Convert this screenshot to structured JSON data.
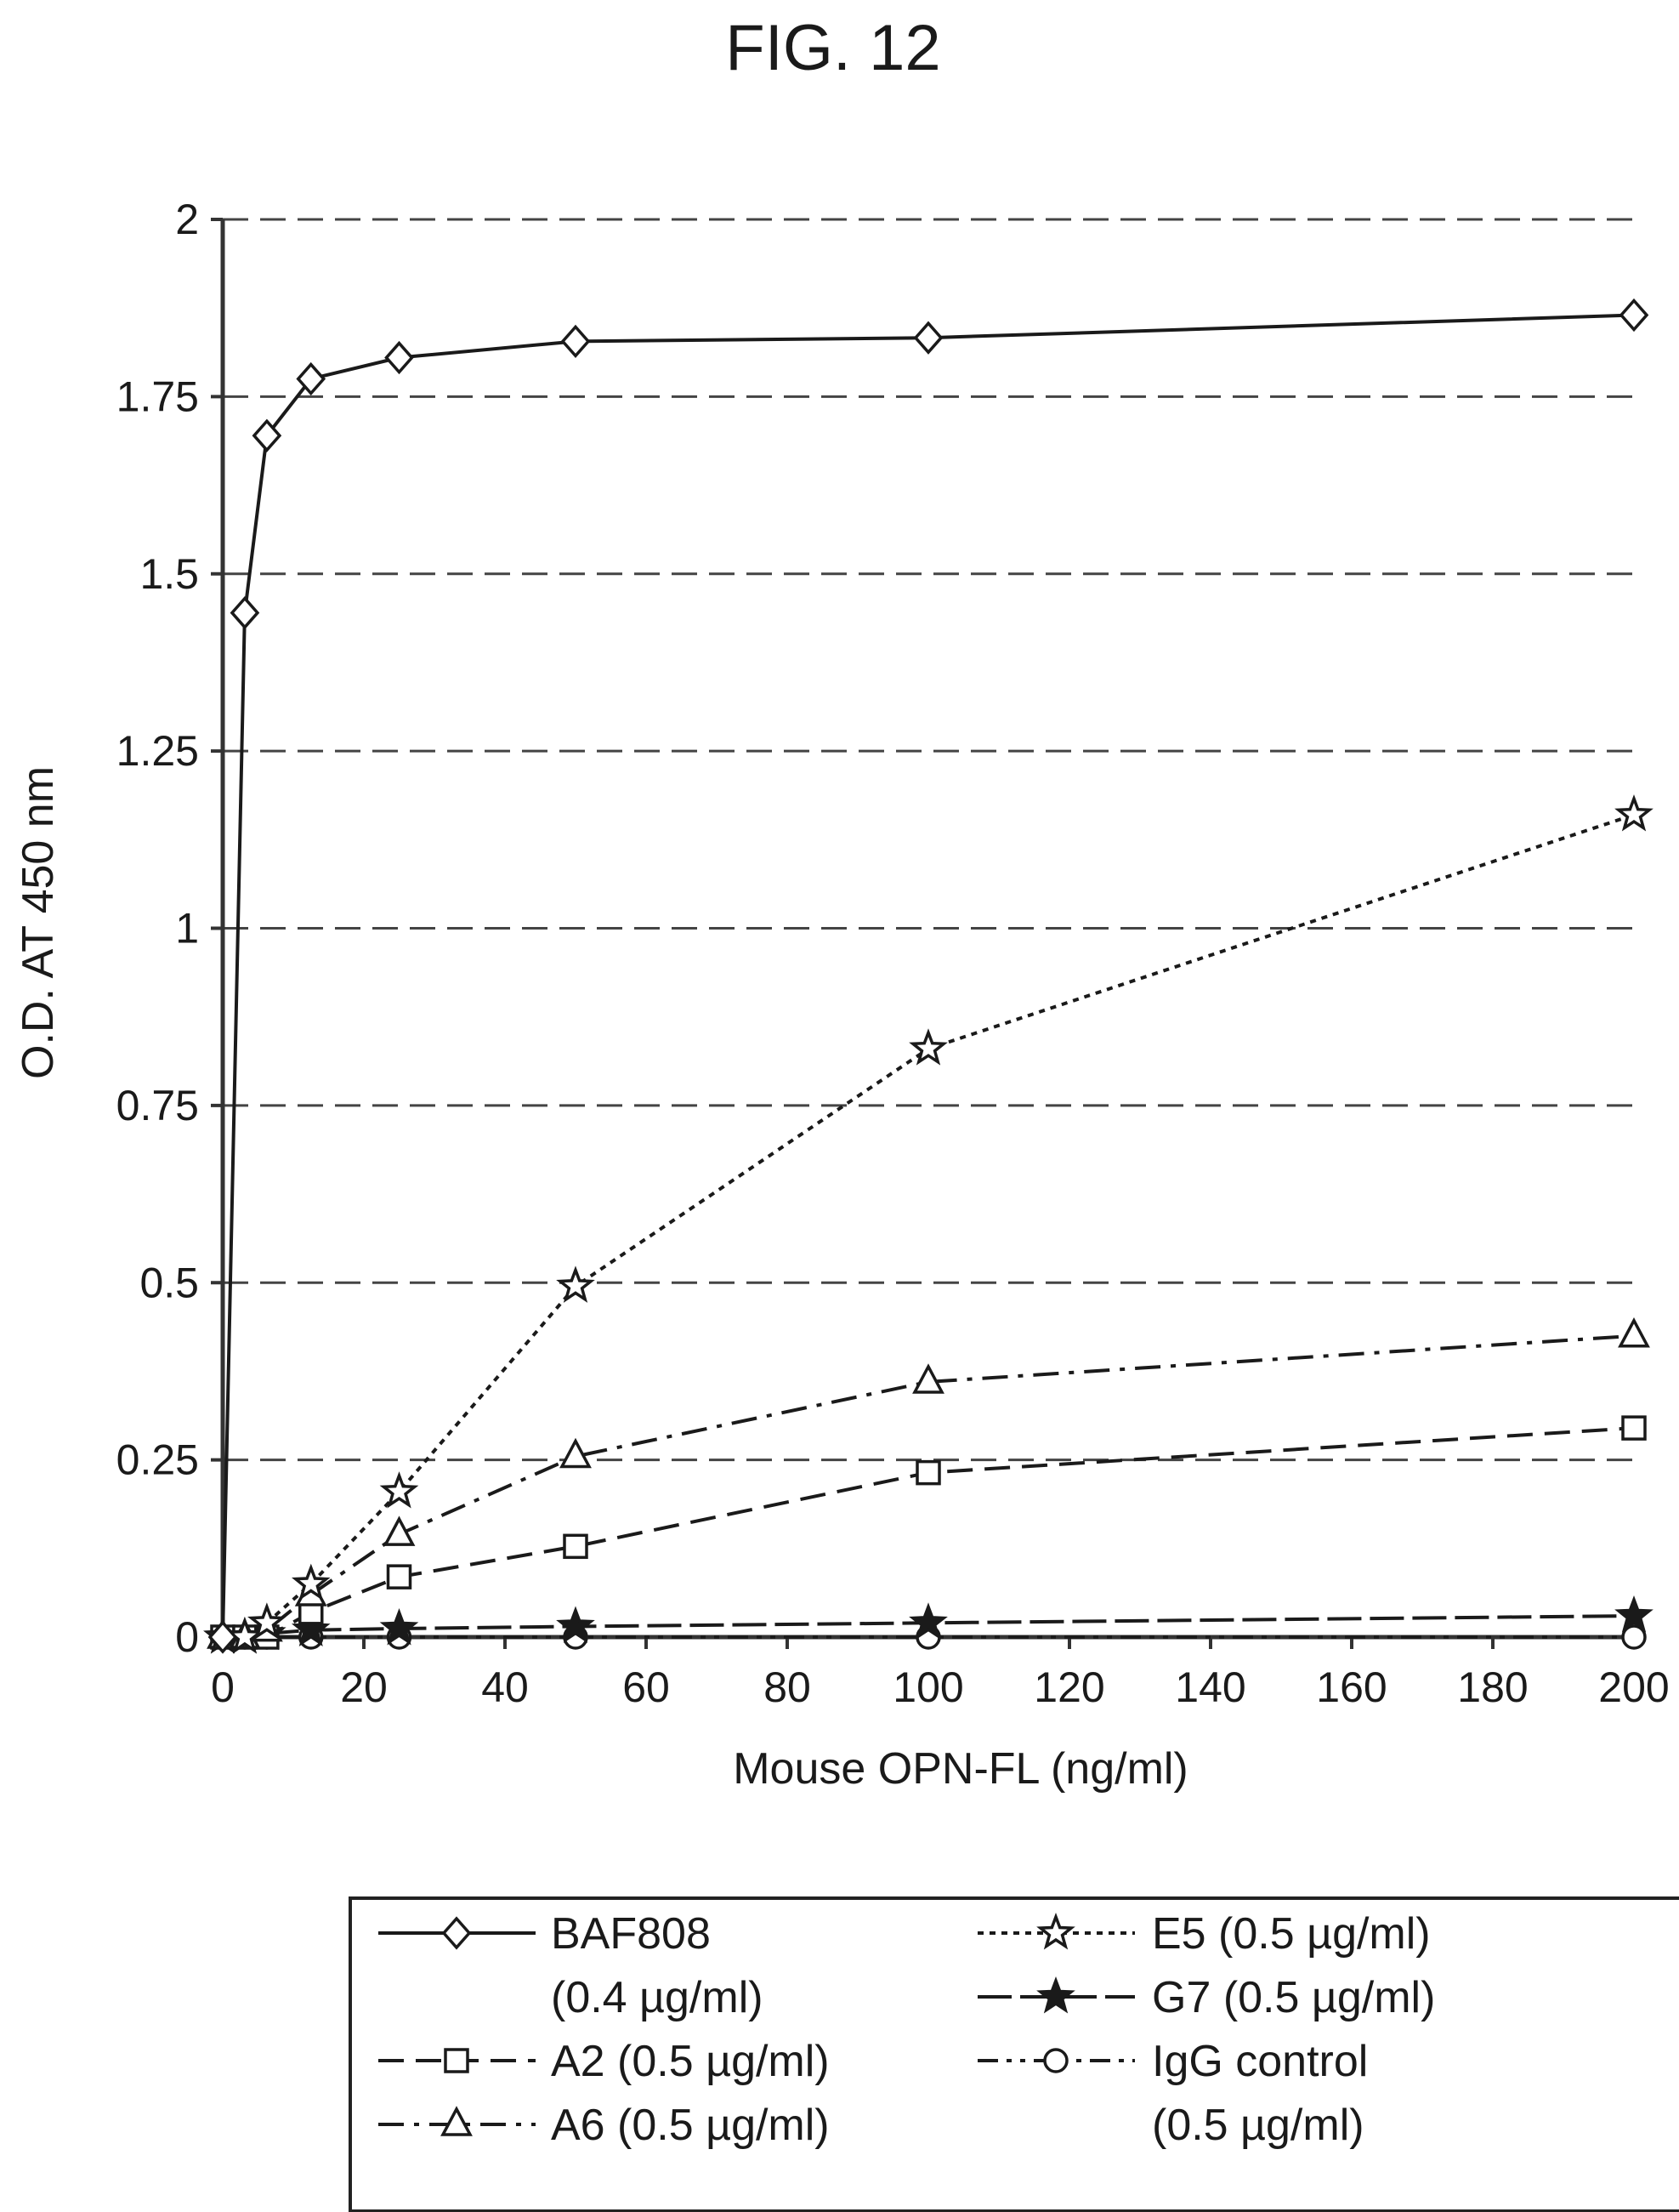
{
  "figure": {
    "title": "FIG. 12"
  },
  "chart_data": {
    "type": "line",
    "xlabel": "Mouse OPN-FL (ng/ml)",
    "ylabel": "O.D. AT 450 nm",
    "xlim": [
      0,
      200
    ],
    "ylim": [
      0,
      2
    ],
    "xticks": [
      "0",
      "20",
      "40",
      "60",
      "80",
      "100",
      "120",
      "140",
      "160",
      "180",
      "200"
    ],
    "yticks": [
      "0",
      "0.25",
      "0.5",
      "0.75",
      "1",
      "1.25",
      "1.5",
      "1.75",
      "2"
    ],
    "grid": "horizontal-dashed",
    "legend_position": "bottom",
    "series": [
      {
        "name": "BAF808",
        "name2": "(0.4 µg/ml)",
        "marker": "diamond",
        "dash": "solid",
        "x": [
          0,
          3.125,
          6.25,
          12.5,
          25,
          50,
          100,
          200
        ],
        "y": [
          0,
          1.445,
          1.695,
          1.775,
          1.805,
          1.828,
          1.833,
          1.865
        ]
      },
      {
        "name": "A2 (0.5 µg/ml)",
        "marker": "square",
        "dash": "dashed",
        "x": [
          0,
          3.125,
          6.25,
          12.5,
          25,
          50,
          100,
          200
        ],
        "y": [
          0,
          0,
          0,
          0.035,
          0.085,
          0.128,
          0.232,
          0.295
        ]
      },
      {
        "name": "A6 (0.5 µg/ml)",
        "marker": "triangle",
        "dash": "dashdot",
        "x": [
          0,
          3.125,
          6.25,
          12.5,
          25,
          50,
          100,
          200
        ],
        "y": [
          0,
          0,
          0.01,
          0.06,
          0.145,
          0.255,
          0.36,
          0.425
        ]
      },
      {
        "name": "E5 (0.5 µg/ml)",
        "marker": "star-open",
        "dash": "dotted",
        "x": [
          0,
          3.125,
          6.25,
          12.5,
          25,
          50,
          100,
          200
        ],
        "y": [
          0,
          0,
          0.02,
          0.075,
          0.205,
          0.495,
          0.83,
          1.16
        ]
      },
      {
        "name": "G7 (0.5 µg/ml)",
        "marker": "star-filled",
        "dash": "longdash",
        "x": [
          0,
          3.125,
          6.25,
          12.5,
          25,
          50,
          100,
          200
        ],
        "y": [
          0,
          0,
          0.005,
          0.01,
          0.012,
          0.015,
          0.02,
          0.03
        ]
      },
      {
        "name": "IgG control",
        "name2": "(0.5 µg/ml)",
        "marker": "circle",
        "dash": "dashdotdot",
        "x": [
          0,
          3.125,
          6.25,
          12.5,
          25,
          50,
          100,
          200
        ],
        "y": [
          0,
          0,
          0,
          0,
          0,
          0,
          0,
          0
        ]
      }
    ]
  }
}
